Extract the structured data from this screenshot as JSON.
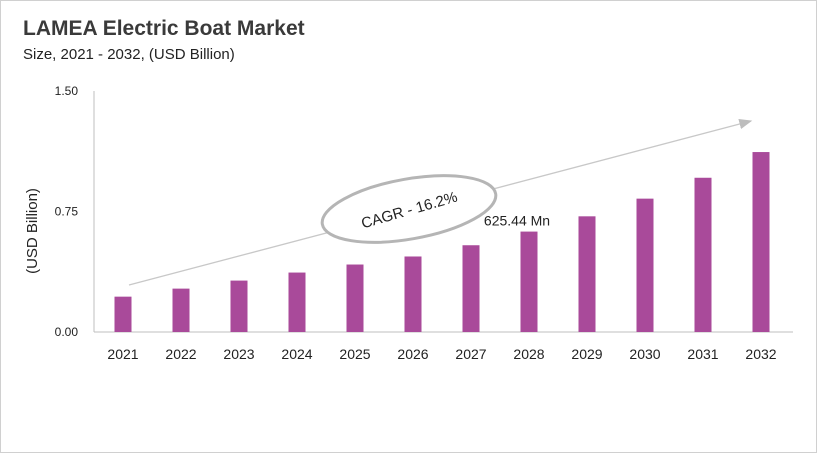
{
  "chart_data": {
    "type": "bar",
    "title": "LAMEA Electric Boat Market",
    "subtitle": "Size, 2021 - 2032, (USD Billion)",
    "xlabel": "",
    "ylabel": "(USD Billion)",
    "ylim": [
      0,
      1.5
    ],
    "yticks": [
      "0.00",
      "0.75",
      "1.50"
    ],
    "categories": [
      "2021",
      "2022",
      "2023",
      "2024",
      "2025",
      "2026",
      "2027",
      "2028",
      "2029",
      "2030",
      "2031",
      "2032"
    ],
    "values": [
      0.22,
      0.27,
      0.32,
      0.37,
      0.42,
      0.47,
      0.54,
      0.625,
      0.72,
      0.83,
      0.96,
      1.12
    ],
    "data_label": {
      "category": "2028",
      "text": "625.44 Mn"
    },
    "annotation": "CAGR - 16.2%",
    "bar_color": "#A94A9A",
    "grid": false,
    "legend": "none"
  }
}
